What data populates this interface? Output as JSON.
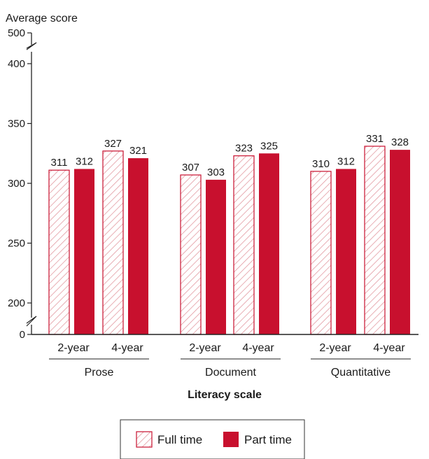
{
  "chart_data": {
    "type": "bar",
    "ylabel": "Average score",
    "xlabel": "Literacy scale",
    "y_ticks": [
      "0",
      "200",
      "250",
      "300",
      "350",
      "400",
      "500"
    ],
    "y_break": true,
    "groups": [
      {
        "name": "Prose",
        "categories": [
          "2-year",
          "4-year"
        ]
      },
      {
        "name": "Document",
        "categories": [
          "2-year",
          "4-year"
        ]
      },
      {
        "name": "Quantitative",
        "categories": [
          "2-year",
          "4-year"
        ]
      }
    ],
    "series": [
      {
        "name": "Full time",
        "pattern": "hatched",
        "color": "#c8102e",
        "values": [
          311,
          327,
          307,
          323,
          310,
          331
        ]
      },
      {
        "name": "Part time",
        "pattern": "solid",
        "color": "#c8102e",
        "values": [
          312,
          321,
          303,
          325,
          312,
          328
        ]
      }
    ],
    "legend_position": "bottom-center",
    "grid": false
  }
}
